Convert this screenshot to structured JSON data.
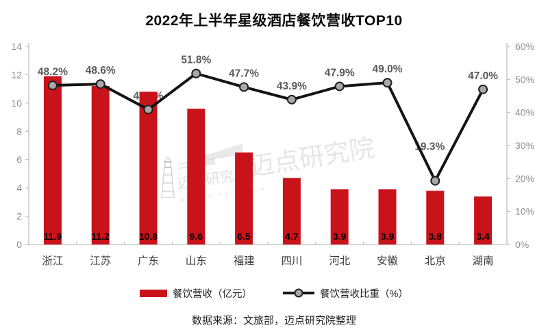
{
  "title": "2022年上半年星级酒店餐饮营收TOP10",
  "source": "数据来源：文旅部，迈点研究院整理",
  "watermark": {
    "brand_large": "迈点研究院",
    "brand_small": "迈点研究院",
    "brand_latin": "MEADIN RESEARCH"
  },
  "legend": {
    "bar_label": "餐饮营收（亿元）",
    "line_label": "餐饮营收比重（%）"
  },
  "colors": {
    "bar": "#c9131b",
    "line": "#141414",
    "marker_fill": "#a8a8a8",
    "marker_stroke": "#1f1f1f",
    "axis": "#bfbfbf",
    "tick_label": "#8c8c8c",
    "category_label": "#3a3a3a",
    "percent_label": "#595959",
    "bar_value_label": "#000000"
  },
  "chart_data": {
    "type": "bar",
    "title": "2022年上半年星级酒店餐饮营收TOP10",
    "categories": [
      "浙江",
      "江苏",
      "广东",
      "山东",
      "福建",
      "四川",
      "河北",
      "安徽",
      "北京",
      "湖南"
    ],
    "series": [
      {
        "name": "餐饮营收（亿元）",
        "type": "bar",
        "axis": "left",
        "values": [
          11.9,
          11.2,
          10.8,
          9.6,
          6.5,
          4.7,
          3.9,
          3.9,
          3.8,
          3.4
        ],
        "data_labels": [
          "11.9",
          "11.2",
          "10.8",
          "9.6",
          "6.5",
          "4.7",
          "3.9",
          "3.9",
          "3.8",
          "3.4"
        ]
      },
      {
        "name": "餐饮营收比重（%）",
        "type": "line",
        "axis": "right",
        "values": [
          48.2,
          48.6,
          40.9,
          51.8,
          47.7,
          43.9,
          47.9,
          49.0,
          19.3,
          47.0
        ],
        "data_labels": [
          "48.2%",
          "48.6%",
          "40.9%",
          "51.8%",
          "47.7%",
          "43.9%",
          "47.9%",
          "49.0%",
          "19.3%",
          "47.0%"
        ]
      }
    ],
    "left_axis": {
      "min": 0,
      "max": 14,
      "ticks": [
        0,
        2,
        4,
        6,
        8,
        10,
        12,
        14
      ]
    },
    "right_axis": {
      "min": 0,
      "max": 60,
      "ticks": [
        "0%",
        "10%",
        "20%",
        "30%",
        "40%",
        "50%",
        "60%"
      ]
    },
    "grid": false,
    "legend_position": "bottom"
  }
}
